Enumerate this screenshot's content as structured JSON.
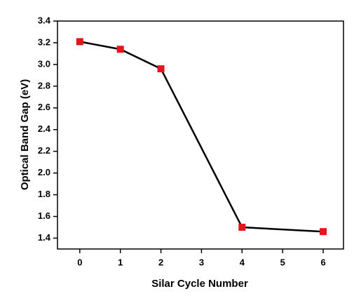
{
  "chart_data": {
    "type": "line",
    "xlabel": "Silar Cycle Number",
    "ylabel": "Optical Band Gap (eV)",
    "x": [
      0,
      1,
      2,
      4,
      6
    ],
    "values": [
      3.21,
      3.14,
      2.96,
      1.5,
      1.46
    ],
    "color": "#e8141b",
    "line_color": "#000000",
    "xlim": [
      -0.55,
      6.5
    ],
    "xticks": [
      0,
      1,
      2,
      3,
      4,
      5,
      6
    ],
    "ylim": [
      1.3,
      3.4
    ],
    "yticks": [
      1.4,
      1.6,
      1.8,
      {
        "value": 2,
        "label": "2.0"
      },
      2.2,
      2.4,
      2.6,
      2.8,
      {
        "value": 3,
        "label": "3.0"
      },
      3.2,
      3.4
    ],
    "grid": false
  }
}
